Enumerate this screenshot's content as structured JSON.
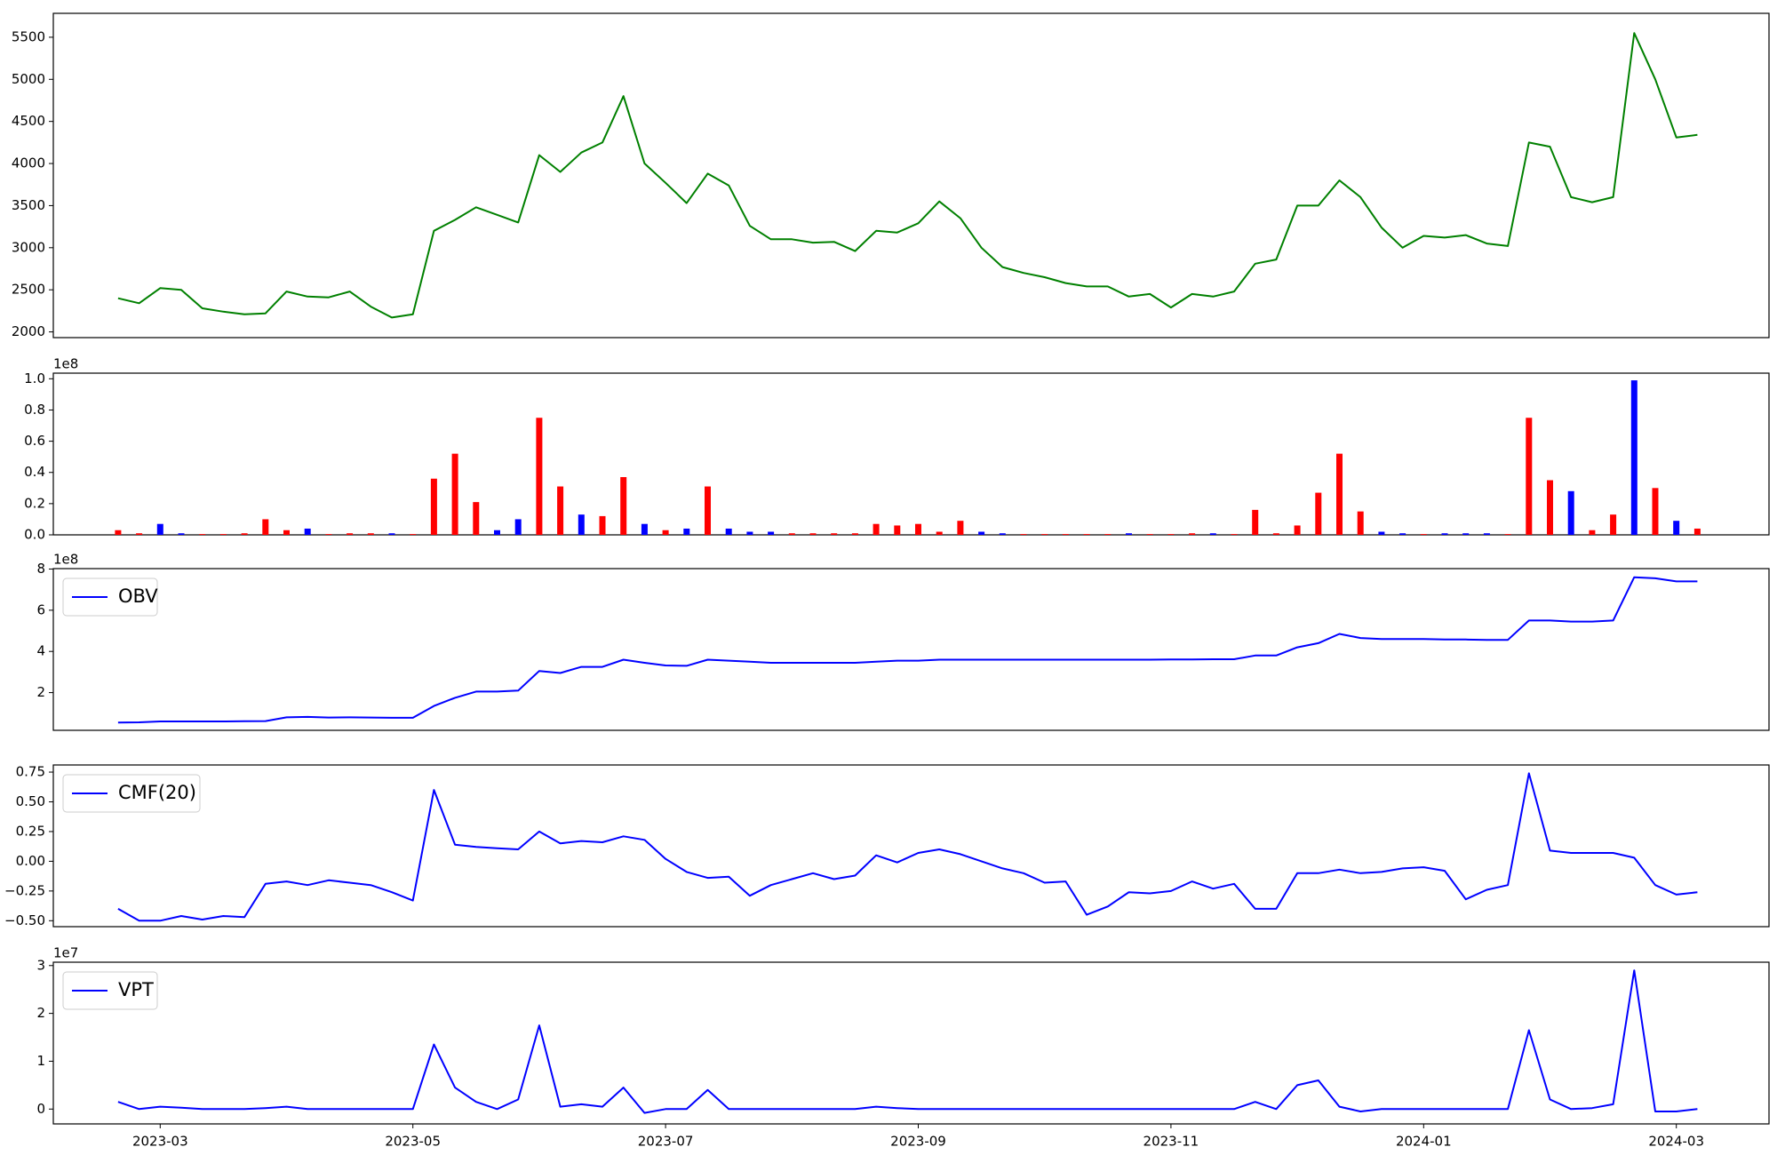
{
  "chart_data": [
    {
      "type": "line",
      "series": [
        {
          "color": "#008000",
          "values": [
            2400,
            2340,
            2520,
            2500,
            2280,
            2240,
            2210,
            2220,
            2480,
            2420,
            2410,
            2480,
            2300,
            2170,
            2210,
            3200,
            3330,
            3480,
            3390,
            3300,
            4100,
            3900,
            4130,
            4250,
            4800,
            4000,
            3770,
            3530,
            3880,
            3740,
            3260,
            3100,
            3100,
            3060,
            3070,
            2960,
            3200,
            3180,
            3290,
            3550,
            3350,
            3000,
            2770,
            2700,
            2650,
            2580,
            2540,
            2540,
            2420,
            2450,
            2290,
            2450,
            2420,
            2480,
            2810,
            2860,
            3500,
            3500,
            3800,
            3600,
            3240,
            3000,
            3140,
            3120,
            3150,
            3050,
            3020,
            4250,
            4200,
            3600,
            3540,
            3600,
            5550,
            5000,
            4310,
            4340
          ]
        }
      ],
      "ylim": [
        1932,
        5784
      ],
      "yticks": [
        2000,
        2500,
        3000,
        3500,
        4000,
        4500,
        5000,
        5500
      ]
    },
    {
      "type": "bar",
      "offset_label": "1e8",
      "values": [
        0.03,
        0.01,
        0.07,
        0.01,
        0.005,
        0.005,
        0.01,
        0.1,
        0.03,
        0.04,
        0.005,
        0.01,
        0.01,
        0.01,
        0.005,
        0.36,
        0.52,
        0.21,
        0.03,
        0.1,
        0.75,
        0.31,
        0.13,
        0.12,
        0.37,
        0.07,
        0.03,
        0.04,
        0.31,
        0.04,
        0.02,
        0.02,
        0.01,
        0.01,
        0.01,
        0.01,
        0.07,
        0.06,
        0.07,
        0.02,
        0.09,
        0.02,
        0.01,
        0.005,
        0.005,
        0.005,
        0.005,
        0.005,
        0.01,
        0.005,
        0.005,
        0.01,
        0.01,
        0.005,
        0.16,
        0.01,
        0.06,
        0.27,
        0.52,
        0.15,
        0.02,
        0.01,
        0.005,
        0.01,
        0.01,
        0.01,
        0.005,
        0.75,
        0.35,
        0.28,
        0.03,
        0.13,
        0.99,
        0.3,
        0.09,
        0.04
      ],
      "colors": [
        "#ff0000",
        "#ff0000",
        "#0000ff",
        "#0000ff",
        "#ff0000",
        "#ff0000",
        "#ff0000",
        "#ff0000",
        "#ff0000",
        "#0000ff",
        "#ff0000",
        "#ff0000",
        "#ff0000",
        "#0000ff",
        "#ff0000",
        "#ff0000",
        "#ff0000",
        "#ff0000",
        "#0000ff",
        "#0000ff",
        "#ff0000",
        "#ff0000",
        "#0000ff",
        "#ff0000",
        "#ff0000",
        "#0000ff",
        "#ff0000",
        "#0000ff",
        "#ff0000",
        "#0000ff",
        "#0000ff",
        "#0000ff",
        "#ff0000",
        "#ff0000",
        "#ff0000",
        "#ff0000",
        "#ff0000",
        "#ff0000",
        "#ff0000",
        "#ff0000",
        "#ff0000",
        "#0000ff",
        "#0000ff",
        "#ff0000",
        "#ff0000",
        "#ff0000",
        "#ff0000",
        "#ff0000",
        "#0000ff",
        "#ff0000",
        "#ff0000",
        "#ff0000",
        "#0000ff",
        "#ff0000",
        "#ff0000",
        "#ff0000",
        "#ff0000",
        "#ff0000",
        "#ff0000",
        "#ff0000",
        "#0000ff",
        "#0000ff",
        "#ff0000",
        "#0000ff",
        "#0000ff",
        "#0000ff",
        "#ff0000",
        "#ff0000",
        "#ff0000",
        "#0000ff",
        "#ff0000",
        "#ff0000",
        "#0000ff",
        "#ff0000",
        "#0000ff",
        "#ff0000"
      ],
      "ylim": [
        0,
        1.036
      ],
      "yticks": [
        {
          "value": 0,
          "label": "0.0"
        },
        0.2,
        0.4,
        0.6,
        0.8,
        {
          "value": 1,
          "label": "1.0"
        }
      ]
    },
    {
      "type": "line",
      "offset_label": "1e8",
      "legend": "upper left",
      "series": [
        {
          "name": "OBV",
          "color": "#0000ff",
          "values": [
            0.55,
            0.56,
            0.6,
            0.6,
            0.6,
            0.6,
            0.61,
            0.62,
            0.8,
            0.82,
            0.79,
            0.8,
            0.79,
            0.78,
            0.78,
            1.35,
            1.75,
            2.05,
            2.05,
            2.1,
            3.05,
            2.95,
            3.25,
            3.25,
            3.6,
            3.45,
            3.32,
            3.3,
            3.6,
            3.55,
            3.5,
            3.45,
            3.45,
            3.45,
            3.45,
            3.45,
            3.5,
            3.55,
            3.55,
            3.6,
            3.6,
            3.6,
            3.6,
            3.6,
            3.6,
            3.6,
            3.6,
            3.6,
            3.6,
            3.6,
            3.61,
            3.61,
            3.62,
            3.62,
            3.8,
            3.8,
            4.2,
            4.4,
            4.85,
            4.65,
            4.6,
            4.6,
            4.6,
            4.58,
            4.58,
            4.56,
            4.56,
            5.5,
            5.5,
            5.45,
            5.45,
            5.5,
            7.6,
            7.55,
            7.4,
            7.4
          ]
        }
      ],
      "ylim": [
        0.17,
        8.02
      ],
      "yticks": [
        2,
        4,
        6,
        8
      ]
    },
    {
      "type": "line",
      "legend": "upper left",
      "series": [
        {
          "name": "CMF(20)",
          "color": "#0000ff",
          "values": [
            -0.4,
            -0.5,
            -0.5,
            -0.46,
            -0.49,
            -0.46,
            -0.47,
            -0.19,
            -0.17,
            -0.2,
            -0.16,
            -0.18,
            -0.2,
            -0.26,
            -0.33,
            0.6,
            0.14,
            0.12,
            0.11,
            0.1,
            0.25,
            0.15,
            0.17,
            0.16,
            0.21,
            0.18,
            0.02,
            -0.09,
            -0.14,
            -0.13,
            -0.29,
            -0.2,
            -0.15,
            -0.1,
            -0.15,
            -0.12,
            0.05,
            -0.01,
            0.07,
            0.1,
            0.06,
            0.0,
            -0.06,
            -0.1,
            -0.18,
            -0.17,
            -0.45,
            -0.38,
            -0.26,
            -0.27,
            -0.25,
            -0.17,
            -0.23,
            -0.19,
            -0.4,
            -0.4,
            -0.1,
            -0.1,
            -0.07,
            -0.1,
            -0.09,
            -0.06,
            -0.05,
            -0.08,
            -0.32,
            -0.24,
            -0.2,
            0.74,
            0.09,
            0.07,
            0.07,
            0.07,
            0.03,
            -0.2,
            -0.28,
            -0.26
          ]
        }
      ],
      "ylim": [
        -0.55,
        0.81
      ],
      "yticks": [
        0.75,
        {
          "value": 0.5,
          "label": "0.50"
        },
        0.25,
        {
          "value": 0,
          "label": "0.00"
        },
        {
          "value": -0.25,
          "label": "−0.25"
        },
        {
          "value": -0.5,
          "label": "−0.50"
        }
      ]
    },
    {
      "type": "line",
      "offset_label": "1e7",
      "legend": "upper left",
      "series": [
        {
          "name": "VPT",
          "color": "#0000ff",
          "values": [
            0.15,
            0,
            0.05,
            0.03,
            0,
            0,
            0,
            0.02,
            0.05,
            0,
            0,
            0,
            0,
            0,
            0,
            1.35,
            0.45,
            0.15,
            0,
            0.2,
            1.75,
            0.05,
            0.1,
            0.05,
            0.45,
            -0.08,
            0,
            0,
            0.4,
            0,
            0,
            0,
            0,
            0,
            0,
            0,
            0.05,
            0.02,
            0,
            0,
            0,
            0,
            0,
            0,
            0,
            0,
            0,
            0,
            0,
            0,
            0,
            0,
            0,
            0,
            0.15,
            0,
            0.5,
            0.6,
            0.05,
            -0.05,
            0,
            0,
            0,
            0,
            0,
            0,
            0,
            1.65,
            0.2,
            0,
            0.02,
            0.1,
            2.9,
            -0.05,
            -0.05,
            0
          ]
        }
      ],
      "ylim": [
        -0.31,
        3.07
      ],
      "yticks": [
        0,
        1,
        2,
        3
      ],
      "categories": [
        null,
        null,
        "2023-03",
        null,
        null,
        null,
        null,
        null,
        null,
        null,
        null,
        null,
        null,
        null,
        "2023-05",
        null,
        null,
        null,
        null,
        null,
        null,
        null,
        null,
        null,
        null,
        null,
        "2023-07",
        null,
        null,
        null,
        null,
        null,
        null,
        null,
        null,
        null,
        null,
        null,
        "2023-09",
        null,
        null,
        null,
        null,
        null,
        null,
        null,
        null,
        null,
        null,
        null,
        "2023-11",
        null,
        null,
        null,
        null,
        null,
        null,
        null,
        null,
        null,
        null,
        null,
        "2024-01",
        null,
        null,
        null,
        null,
        null,
        null,
        null,
        null,
        null,
        null,
        null,
        "2024-03",
        null
      ]
    }
  ]
}
